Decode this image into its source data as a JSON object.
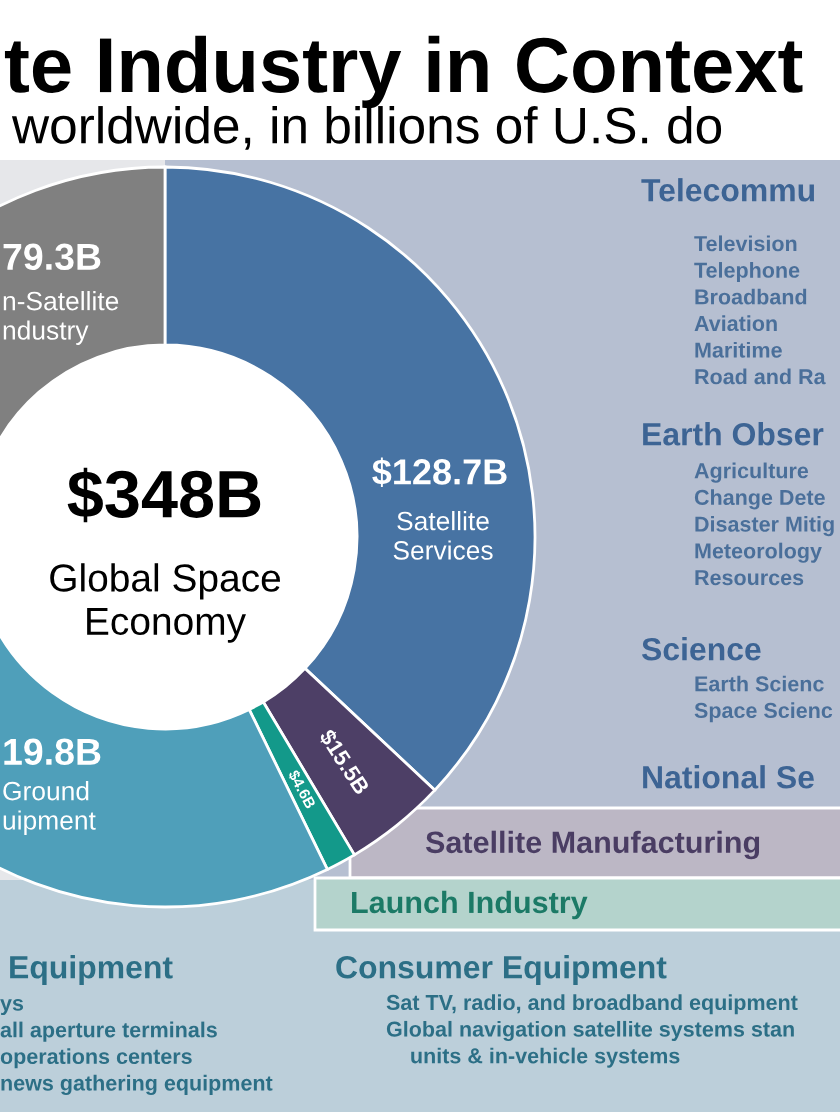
{
  "chart_data": {
    "type": "donut",
    "title": "te Industry in Context",
    "subtitle": "worldwide, in billions of U.S. do",
    "categories": [
      "Satellite\nServices",
      "Satellite Manufacturing",
      "Launch Industry",
      "Ground\nuipment",
      "n-Satellite\nndustry"
    ],
    "values": [
      128.7,
      15.5,
      4.6,
      119.8,
      79.3
    ],
    "colors": [
      "#4773a3",
      "#4d3f66",
      "#13998a",
      "#4f9fba",
      "#808080"
    ],
    "value_labels": [
      "$128.7B",
      "$15.5B",
      "$4.6B",
      null,
      "79.3B"
    ],
    "annotations": [
      "$348B",
      "Global Space\nEconomy",
      "Telecommu",
      "Television\nTelephone\nBroadband\nAviation\nMaritime\nRoad and Ra",
      "Earth Obser",
      "Agriculture\nChange Dete\nDisaster Mitig\nMeteorology\nResources",
      "Science",
      "Earth Scienc\nSpace Scienc",
      "National Se",
      "Equipment",
      "ys\nall aperture terminals\noperations centers\nnews gathering equipment",
      "Consumer Equipment",
      "Sat TV, radio, and broadband equipment\nGlobal navigation satellite systems stan\n    units & in-vehicle systems",
      "19.8B"
    ]
  }
}
